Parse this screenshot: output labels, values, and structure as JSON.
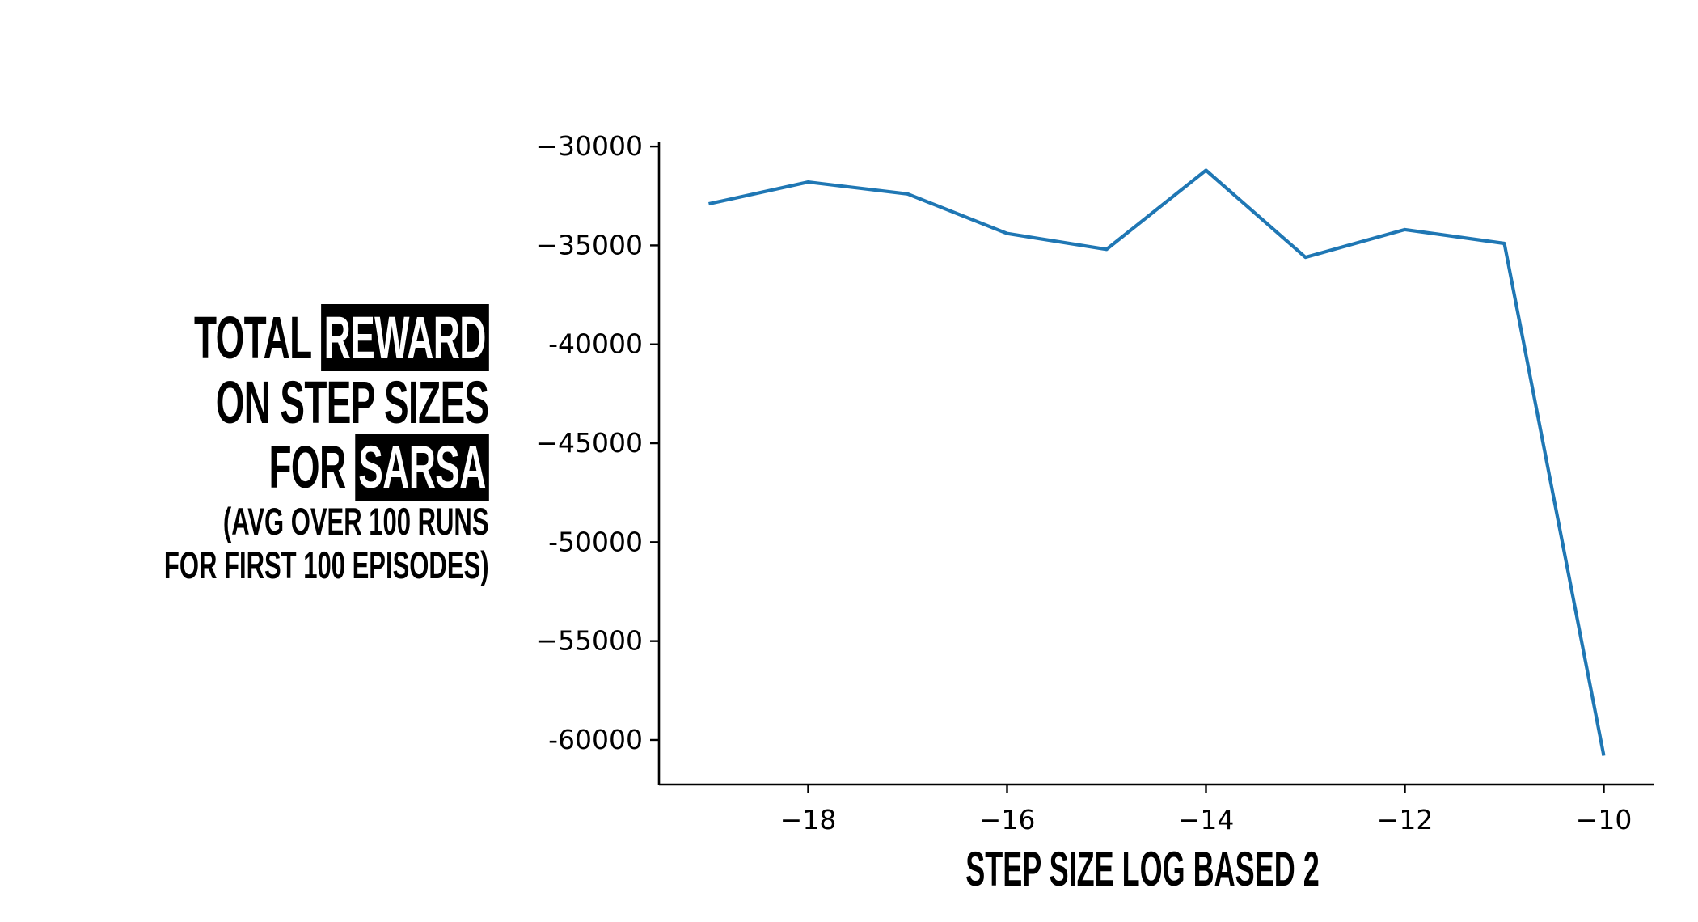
{
  "chart_data": {
    "type": "line",
    "xlabel": "STEP SIZE LOG BASED 2",
    "ylabel": {
      "line1_pre": "TOTAL",
      "line1_hl": "REWARD",
      "line2": "ON STEP SIZES",
      "line3_pre": "FOR",
      "line3_hl": "SARSA",
      "line4": "(AVG OVER 100 RUNS",
      "line5": "FOR FIRST 100 EPISODES)"
    },
    "xlim": [
      -19.5,
      -9.5
    ],
    "ylim": [
      -62250,
      -29750
    ],
    "xticks": [
      -18,
      -16,
      -14,
      -12,
      -10
    ],
    "xtick_labels": [
      "−18",
      "−16",
      "−14",
      "−12",
      "−10"
    ],
    "yticks": [
      -30000,
      -35000,
      -40000,
      -45000,
      -50000,
      -55000,
      -60000
    ],
    "ytick_labels": [
      "−30000",
      "−35000",
      "-40000",
      "−45000",
      "-50000",
      "−55000",
      "-60000"
    ],
    "grid": false,
    "series": [
      {
        "color": "#1f77b4",
        "x": [
          -19,
          -18,
          -17,
          -16,
          -15,
          -14,
          -13,
          -12,
          -11,
          -10
        ],
        "y": [
          -32900,
          -31800,
          -32400,
          -34400,
          -35200,
          -31200,
          -35600,
          -34200,
          -34900,
          -60800
        ]
      }
    ]
  }
}
